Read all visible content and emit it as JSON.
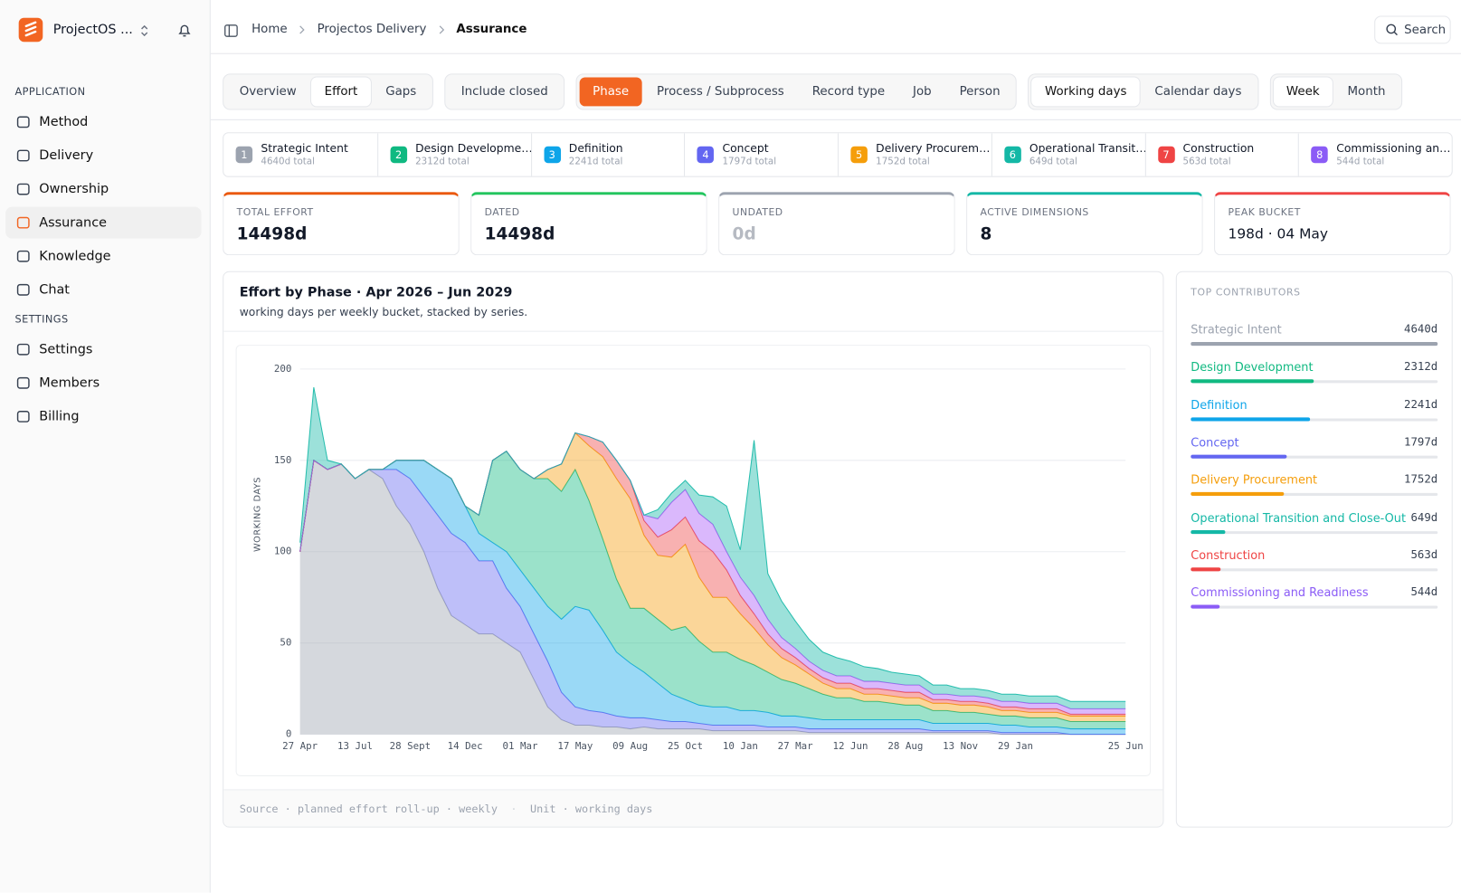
{
  "app": {
    "name": "ProjectOS ...",
    "sections": [
      {
        "title": "APPLICATION",
        "items": [
          {
            "label": "Method"
          },
          {
            "label": "Delivery"
          },
          {
            "label": "Ownership"
          },
          {
            "label": "Assurance",
            "active": true
          },
          {
            "label": "Knowledge"
          },
          {
            "label": "Chat"
          }
        ]
      },
      {
        "title": "SETTINGS",
        "items": [
          {
            "label": "Settings"
          },
          {
            "label": "Members"
          },
          {
            "label": "Billing"
          }
        ]
      }
    ]
  },
  "header": {
    "breadcrumb": [
      "Home",
      "Projectos Delivery",
      "Assurance"
    ],
    "search": "Search"
  },
  "toolbar": [
    {
      "options": [
        {
          "label": "Overview"
        },
        {
          "label": "Effort",
          "active": true
        },
        {
          "label": "Gaps"
        }
      ]
    },
    {
      "options": [
        {
          "label": "Include closed"
        }
      ]
    },
    {
      "accent": "#f26522",
      "options": [
        {
          "label": "Phase",
          "active": true
        },
        {
          "label": "Process / Subprocess"
        },
        {
          "label": "Record type"
        },
        {
          "label": "Job"
        },
        {
          "label": "Person"
        }
      ]
    },
    {
      "options": [
        {
          "label": "Working days",
          "active": true
        },
        {
          "label": "Calendar days"
        }
      ]
    },
    {
      "options": [
        {
          "label": "Week",
          "active": true
        },
        {
          "label": "Month"
        }
      ]
    }
  ],
  "phases": [
    {
      "number": 1,
      "name": "Strategic Intent",
      "total": "4640d total",
      "color": "#9ca3af"
    },
    {
      "number": 2,
      "name": "Design Developme…",
      "total": "2312d total",
      "color": "#10b981"
    },
    {
      "number": 3,
      "name": "Definition",
      "total": "2241d total",
      "color": "#0ea5e9"
    },
    {
      "number": 4,
      "name": "Concept",
      "total": "1797d total",
      "color": "#6366f1"
    },
    {
      "number": 5,
      "name": "Delivery Procurem…",
      "total": "1752d total",
      "color": "#f59e0b"
    },
    {
      "number": 6,
      "name": "Operational Transit…",
      "total": "649d total",
      "color": "#14b8a6"
    },
    {
      "number": 7,
      "name": "Construction",
      "total": "563d total",
      "color": "#ef4444"
    },
    {
      "number": 8,
      "name": "Commissioning an…",
      "total": "544d total",
      "color": "#8b5cf6"
    }
  ],
  "kpis": [
    {
      "label": "TOTAL EFFORT",
      "value": "14498d",
      "color": "#ea580c"
    },
    {
      "label": "DATED",
      "value": "14498d",
      "color": "#22c55e"
    },
    {
      "label": "UNDATED",
      "value": "0d",
      "color": "#9ca3af",
      "muted": true
    },
    {
      "label": "ACTIVE DIMENSIONS",
      "value": 8,
      "color": "#14b8a6"
    },
    {
      "label": "PEAK BUCKET",
      "value": "198d · 04 May",
      "color": "#ef4444",
      "plain": true
    }
  ],
  "chart_data": {
    "type": "area",
    "stacked": true,
    "title": "Effort by Phase · Apr 2026 – Jun 2029",
    "subtitle": "working days per weekly bucket, stacked by series.",
    "y_label": "WORKING DAYS",
    "grid": true,
    "ylim": [
      0,
      200
    ],
    "yticks": [
      0,
      50,
      100,
      150,
      200
    ],
    "categories": [
      "27 Apr",
      null,
      null,
      null,
      "13 Jul",
      null,
      null,
      null,
      "28 Sept",
      null,
      null,
      null,
      "14 Dec",
      null,
      null,
      null,
      "01 Mar",
      null,
      null,
      null,
      "17 May",
      null,
      null,
      null,
      "09 Aug",
      null,
      null,
      null,
      "25 Oct",
      null,
      null,
      null,
      "10 Jan",
      null,
      null,
      null,
      "27 Mar",
      null,
      null,
      null,
      "12 Jun",
      null,
      null,
      null,
      "28 Aug",
      null,
      null,
      null,
      "13 Nov",
      null,
      null,
      null,
      "29 Jan",
      null,
      null,
      null,
      null,
      null,
      null,
      null,
      "25 Jun"
    ],
    "series": [
      {
        "name": "Strategic Intent",
        "color": "#9ca3af",
        "values": [
          100,
          150,
          145,
          148,
          140,
          145,
          140,
          125,
          115,
          100,
          80,
          65,
          60,
          55,
          55,
          50,
          45,
          30,
          15,
          8,
          5,
          5,
          4,
          4,
          3,
          4,
          3,
          3,
          3,
          3,
          2,
          2,
          2,
          2,
          2,
          2,
          2,
          1,
          1,
          1,
          1,
          1,
          1,
          1,
          1,
          1,
          1,
          1,
          1,
          1,
          1,
          0,
          0,
          0,
          0,
          0,
          0,
          0,
          0,
          0,
          0
        ]
      },
      {
        "name": "Concept",
        "color": "#6366f1",
        "values": [
          0,
          0,
          0,
          0,
          0,
          0,
          5,
          20,
          25,
          30,
          40,
          45,
          45,
          40,
          40,
          30,
          25,
          25,
          25,
          15,
          10,
          8,
          8,
          6,
          6,
          5,
          5,
          4,
          4,
          3,
          3,
          3,
          3,
          3,
          2,
          2,
          2,
          2,
          2,
          2,
          2,
          2,
          2,
          2,
          2,
          2,
          1,
          1,
          1,
          1,
          1,
          1,
          1,
          1,
          1,
          1,
          0,
          0,
          0,
          0,
          0
        ]
      },
      {
        "name": "Definition",
        "color": "#0ea5e9",
        "values": [
          0,
          0,
          0,
          0,
          0,
          0,
          0,
          5,
          10,
          20,
          25,
          30,
          20,
          15,
          10,
          20,
          20,
          25,
          30,
          40,
          55,
          55,
          45,
          35,
          30,
          25,
          20,
          15,
          12,
          10,
          10,
          10,
          8,
          8,
          8,
          6,
          6,
          6,
          5,
          5,
          5,
          5,
          5,
          5,
          5,
          5,
          4,
          4,
          4,
          4,
          4,
          4,
          4,
          3,
          3,
          3,
          3,
          3,
          3,
          3,
          3
        ]
      },
      {
        "name": "Design Development",
        "color": "#10b981",
        "values": [
          0,
          0,
          0,
          0,
          0,
          0,
          0,
          0,
          0,
          0,
          0,
          0,
          0,
          10,
          45,
          55,
          55,
          60,
          70,
          70,
          75,
          60,
          50,
          40,
          30,
          35,
          35,
          35,
          40,
          35,
          30,
          30,
          28,
          25,
          22,
          20,
          18,
          16,
          14,
          12,
          12,
          10,
          10,
          9,
          8,
          8,
          7,
          7,
          6,
          6,
          5,
          5,
          5,
          5,
          5,
          5,
          4,
          4,
          4,
          4,
          4
        ]
      },
      {
        "name": "Delivery Procurement",
        "color": "#f59e0b",
        "values": [
          0,
          0,
          0,
          0,
          0,
          0,
          0,
          0,
          0,
          0,
          0,
          0,
          0,
          0,
          0,
          0,
          0,
          0,
          5,
          15,
          20,
          30,
          45,
          55,
          60,
          40,
          35,
          40,
          45,
          35,
          30,
          30,
          25,
          20,
          15,
          12,
          10,
          8,
          6,
          5,
          5,
          4,
          4,
          4,
          4,
          4,
          4,
          4,
          4,
          4,
          4,
          3,
          3,
          3,
          3,
          3,
          3,
          3,
          3,
          3,
          3
        ]
      },
      {
        "name": "Construction",
        "color": "#ef4444",
        "values": [
          0,
          0,
          0,
          0,
          0,
          0,
          0,
          0,
          0,
          0,
          0,
          0,
          0,
          0,
          0,
          0,
          0,
          0,
          0,
          0,
          0,
          5,
          8,
          10,
          10,
          8,
          10,
          15,
          15,
          20,
          25,
          15,
          10,
          8,
          6,
          5,
          4,
          3,
          3,
          3,
          3,
          3,
          3,
          3,
          3,
          3,
          2,
          2,
          2,
          2,
          2,
          2,
          2,
          2,
          2,
          2,
          1,
          1,
          1,
          1,
          1
        ]
      },
      {
        "name": "Commissioning and Readiness",
        "color": "#a855f7",
        "values": [
          0,
          0,
          0,
          0,
          0,
          0,
          0,
          0,
          0,
          0,
          0,
          0,
          0,
          0,
          0,
          0,
          0,
          0,
          0,
          0,
          0,
          0,
          0,
          0,
          0,
          3,
          10,
          15,
          15,
          15,
          15,
          10,
          10,
          10,
          8,
          6,
          5,
          4,
          4,
          4,
          4,
          4,
          4,
          4,
          4,
          4,
          3,
          3,
          3,
          3,
          3,
          3,
          3,
          3,
          3,
          3,
          3,
          3,
          3,
          3,
          3
        ]
      },
      {
        "name": "Operational Transition and Close-Out",
        "color": "#14b8a6",
        "values": [
          5,
          40,
          5,
          0,
          0,
          0,
          0,
          0,
          0,
          0,
          0,
          0,
          0,
          0,
          0,
          0,
          0,
          0,
          0,
          0,
          0,
          0,
          0,
          0,
          0,
          0,
          5,
          5,
          5,
          10,
          15,
          25,
          15,
          85,
          25,
          20,
          15,
          12,
          10,
          10,
          8,
          8,
          7,
          6,
          6,
          5,
          5,
          5,
          4,
          4,
          4,
          4,
          4,
          4,
          4,
          4,
          4,
          4,
          4,
          4,
          4
        ]
      }
    ]
  },
  "footer": [
    "Source · planned effort roll-up · weekly",
    "·",
    "Unit · working days"
  ],
  "contributors": {
    "title": "TOP CONTRIBUTORS",
    "items": [
      {
        "name": "Strategic Intent",
        "value": {
          "value": 4640,
          "label": "4640d"
        },
        "color": "#9ca3af"
      },
      {
        "name": "Design Development",
        "value": {
          "value": 2312,
          "label": "2312d"
        },
        "color": "#10b981"
      },
      {
        "name": "Definition",
        "value": {
          "value": 2241,
          "label": "2241d"
        },
        "color": "#0ea5e9"
      },
      {
        "name": "Concept",
        "value": {
          "value": 1797,
          "label": "1797d"
        },
        "color": "#6366f1"
      },
      {
        "name": "Delivery Procurement",
        "value": {
          "value": 1752,
          "label": "1752d"
        },
        "color": "#f59e0b"
      },
      {
        "name": "Operational Transition and Close-Out",
        "value": {
          "value": 649,
          "label": "649d"
        },
        "color": "#14b8a6"
      },
      {
        "name": "Construction",
        "value": {
          "value": 563,
          "label": "563d"
        },
        "color": "#ef4444"
      },
      {
        "name": "Commissioning and Readiness",
        "value": {
          "value": 544,
          "label": "544d"
        },
        "color": "#8b5cf6"
      }
    ]
  }
}
